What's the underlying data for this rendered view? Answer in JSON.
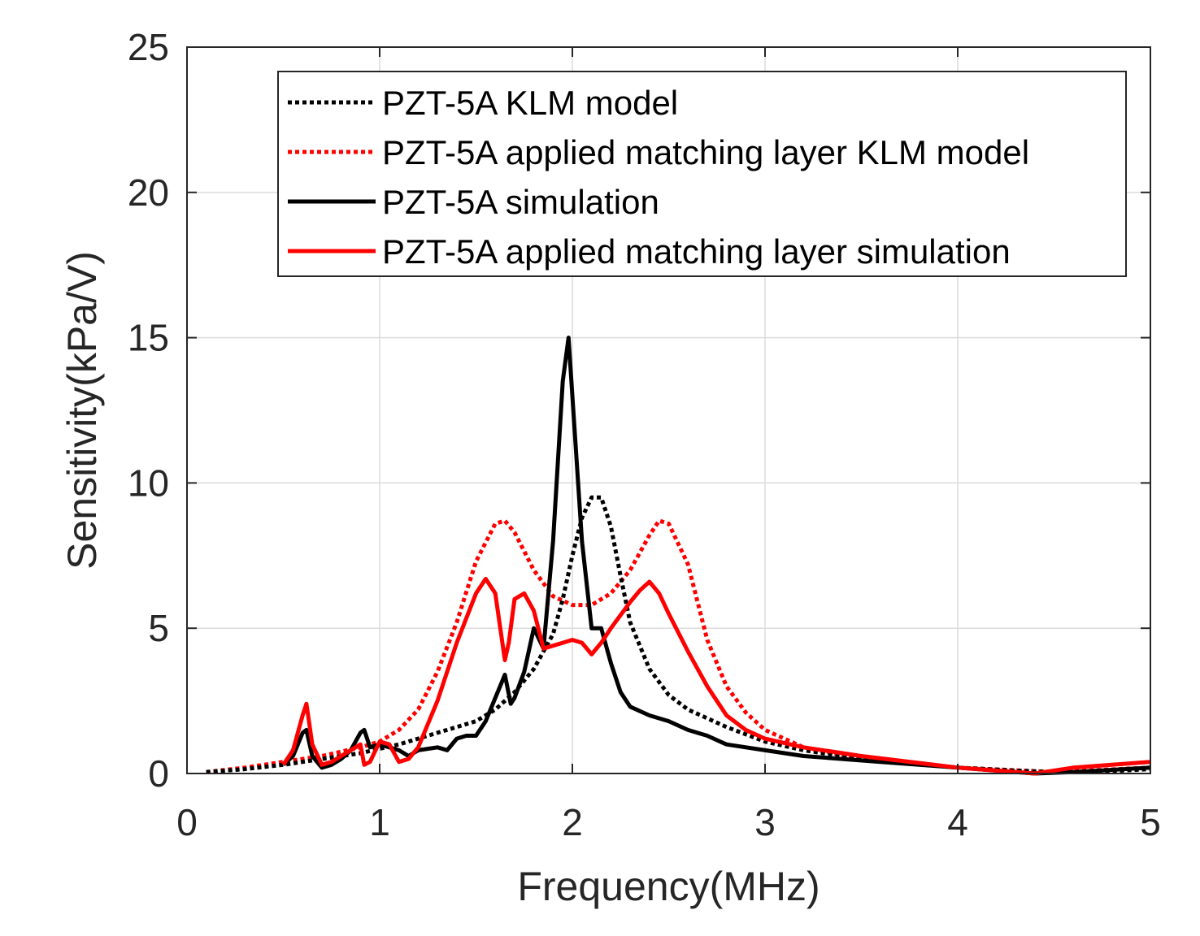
{
  "chart_data": {
    "type": "line",
    "title": "",
    "xlabel": "Frequency(MHz)",
    "ylabel": "Sensitivity(kPa/V)",
    "xlim": [
      0,
      5
    ],
    "ylim": [
      0,
      25
    ],
    "xticks": [
      0,
      1,
      2,
      3,
      4,
      5
    ],
    "yticks": [
      0,
      5,
      10,
      15,
      20,
      25
    ],
    "xtick_labels": [
      "0",
      "1",
      "2",
      "3",
      "4",
      "5"
    ],
    "ytick_labels": [
      "0",
      "5",
      "10",
      "15",
      "20",
      "25"
    ],
    "grid": true,
    "legend_position": "top-right",
    "series": [
      {
        "name": "PZT-5A KLM model",
        "color": "#000000",
        "style": "dotted",
        "x": [
          0.1,
          0.3,
          0.5,
          0.7,
          0.9,
          1.1,
          1.3,
          1.5,
          1.6,
          1.7,
          1.8,
          1.9,
          1.95,
          2.0,
          2.05,
          2.1,
          2.15,
          2.2,
          2.25,
          2.3,
          2.4,
          2.5,
          2.6,
          2.8,
          3.0,
          3.2,
          3.5,
          4.0,
          4.3,
          4.5,
          4.7,
          5.0
        ],
        "y": [
          0.05,
          0.15,
          0.3,
          0.5,
          0.7,
          1.0,
          1.4,
          1.8,
          2.2,
          2.8,
          3.6,
          4.8,
          6.0,
          7.5,
          8.8,
          9.5,
          9.5,
          8.5,
          6.8,
          5.2,
          3.6,
          2.7,
          2.2,
          1.6,
          1.1,
          0.8,
          0.5,
          0.2,
          0.1,
          0.05,
          0.05,
          0.15
        ]
      },
      {
        "name": "PZT-5A applied matching layer KLM model",
        "color": "#ff0000",
        "style": "dotted",
        "x": [
          0.1,
          0.3,
          0.5,
          0.7,
          0.9,
          1.0,
          1.1,
          1.2,
          1.3,
          1.4,
          1.5,
          1.6,
          1.65,
          1.7,
          1.8,
          1.9,
          2.0,
          2.1,
          2.2,
          2.3,
          2.4,
          2.45,
          2.5,
          2.6,
          2.7,
          2.8,
          2.9,
          3.0,
          3.2,
          3.5,
          4.0,
          4.5,
          5.0
        ],
        "y": [
          0.05,
          0.2,
          0.4,
          0.6,
          0.9,
          1.1,
          1.5,
          2.2,
          3.5,
          5.2,
          7.3,
          8.6,
          8.7,
          8.3,
          7.0,
          6.1,
          5.8,
          5.8,
          6.2,
          7.0,
          8.2,
          8.7,
          8.6,
          7.2,
          4.6,
          3.0,
          2.1,
          1.5,
          0.9,
          0.5,
          0.2,
          0.05,
          0.2
        ]
      },
      {
        "name": "PZT-5A simulation",
        "color": "#000000",
        "style": "solid",
        "x": [
          0.5,
          0.55,
          0.6,
          0.62,
          0.65,
          0.7,
          0.75,
          0.8,
          0.85,
          0.9,
          0.92,
          0.95,
          1.0,
          1.05,
          1.1,
          1.15,
          1.2,
          1.3,
          1.35,
          1.4,
          1.45,
          1.5,
          1.55,
          1.6,
          1.65,
          1.68,
          1.7,
          1.75,
          1.8,
          1.85,
          1.9,
          1.95,
          1.98,
          2.0,
          2.05,
          2.1,
          2.15,
          2.2,
          2.25,
          2.3,
          2.4,
          2.5,
          2.6,
          2.7,
          2.8,
          3.0,
          3.2,
          3.4,
          3.6,
          4.0,
          4.4,
          4.6,
          5.0
        ],
        "y": [
          0.3,
          0.6,
          1.4,
          1.5,
          0.6,
          0.2,
          0.3,
          0.5,
          0.8,
          1.4,
          1.5,
          0.9,
          1.0,
          0.9,
          0.8,
          0.6,
          0.8,
          0.9,
          0.8,
          1.2,
          1.3,
          1.3,
          1.8,
          2.6,
          3.4,
          2.4,
          2.6,
          3.5,
          5.0,
          4.3,
          8.0,
          13.5,
          15.0,
          13.0,
          8.0,
          5.0,
          5.0,
          3.8,
          2.8,
          2.3,
          2.0,
          1.8,
          1.5,
          1.3,
          1.0,
          0.8,
          0.6,
          0.5,
          0.4,
          0.2,
          0.0,
          0.05,
          0.2
        ]
      },
      {
        "name": "PZT-5A applied matching layer simulation",
        "color": "#ff0000",
        "style": "solid",
        "x": [
          0.5,
          0.55,
          0.6,
          0.62,
          0.65,
          0.7,
          0.75,
          0.8,
          0.85,
          0.9,
          0.92,
          0.95,
          1.0,
          1.05,
          1.1,
          1.15,
          1.2,
          1.3,
          1.4,
          1.5,
          1.55,
          1.6,
          1.65,
          1.67,
          1.7,
          1.75,
          1.8,
          1.85,
          1.9,
          1.95,
          2.0,
          2.05,
          2.1,
          2.15,
          2.2,
          2.3,
          2.35,
          2.4,
          2.45,
          2.5,
          2.6,
          2.7,
          2.8,
          2.9,
          3.0,
          3.2,
          3.5,
          4.0,
          4.4,
          4.6,
          5.0
        ],
        "y": [
          0.3,
          0.8,
          2.0,
          2.4,
          1.0,
          0.3,
          0.4,
          0.6,
          0.8,
          1.0,
          0.3,
          0.4,
          1.1,
          1.0,
          0.4,
          0.5,
          0.9,
          2.5,
          4.5,
          6.2,
          6.7,
          6.2,
          3.9,
          4.5,
          6.0,
          6.2,
          5.6,
          4.3,
          4.4,
          4.5,
          4.6,
          4.5,
          4.1,
          4.5,
          5.0,
          5.9,
          6.3,
          6.6,
          6.2,
          5.5,
          4.2,
          3.0,
          2.0,
          1.5,
          1.2,
          0.9,
          0.6,
          0.2,
          0.0,
          0.2,
          0.4
        ]
      }
    ]
  }
}
